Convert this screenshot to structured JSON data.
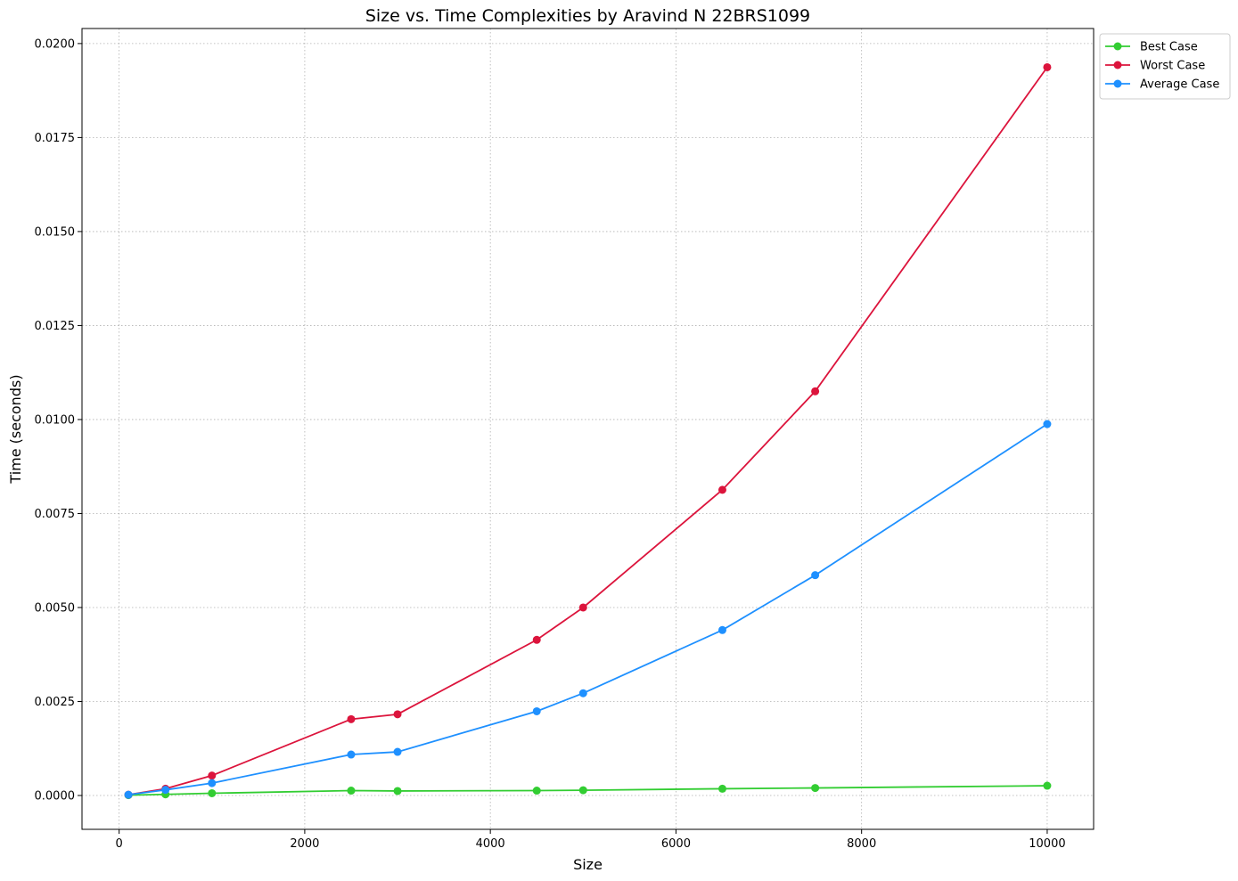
{
  "chart_data": {
    "type": "line",
    "title": "Size vs. Time Complexities by Aravind N 22BRS1099",
    "xlabel": "Size",
    "ylabel": "Time (seconds)",
    "xlim": [
      -400,
      10500
    ],
    "ylim": [
      -0.0009,
      0.0204
    ],
    "x_ticks": [
      0,
      2000,
      4000,
      6000,
      8000,
      10000
    ],
    "x_tick_labels": [
      "0",
      "2000",
      "4000",
      "6000",
      "8000",
      "10000"
    ],
    "y_ticks": [
      0.0,
      0.0025,
      0.005,
      0.0075,
      0.01,
      0.0125,
      0.015,
      0.0175,
      0.02
    ],
    "y_tick_labels": [
      "0.0000",
      "0.0025",
      "0.0050",
      "0.0075",
      "0.0100",
      "0.0125",
      "0.0150",
      "0.0175",
      "0.0200"
    ],
    "grid": true,
    "legend_position": "outside-top-right",
    "x": [
      100,
      500,
      1000,
      2500,
      3000,
      4500,
      5000,
      6500,
      7500,
      10000
    ],
    "series": [
      {
        "name": "Best Case",
        "color": "#32cd32",
        "values": [
          1e-05,
          3e-05,
          6e-05,
          0.00013,
          0.00012,
          0.00013,
          0.00014,
          0.00018,
          0.0002,
          0.00026
        ]
      },
      {
        "name": "Worst Case",
        "color": "#dc143c",
        "values": [
          2e-05,
          0.00018,
          0.00053,
          0.00203,
          0.00216,
          0.00414,
          0.005,
          0.00813,
          0.01075,
          0.01937
        ]
      },
      {
        "name": "Average Case",
        "color": "#1e90ff",
        "values": [
          2e-05,
          0.00015,
          0.00033,
          0.00109,
          0.00116,
          0.00224,
          0.00272,
          0.0044,
          0.00586,
          0.00988
        ]
      }
    ]
  }
}
